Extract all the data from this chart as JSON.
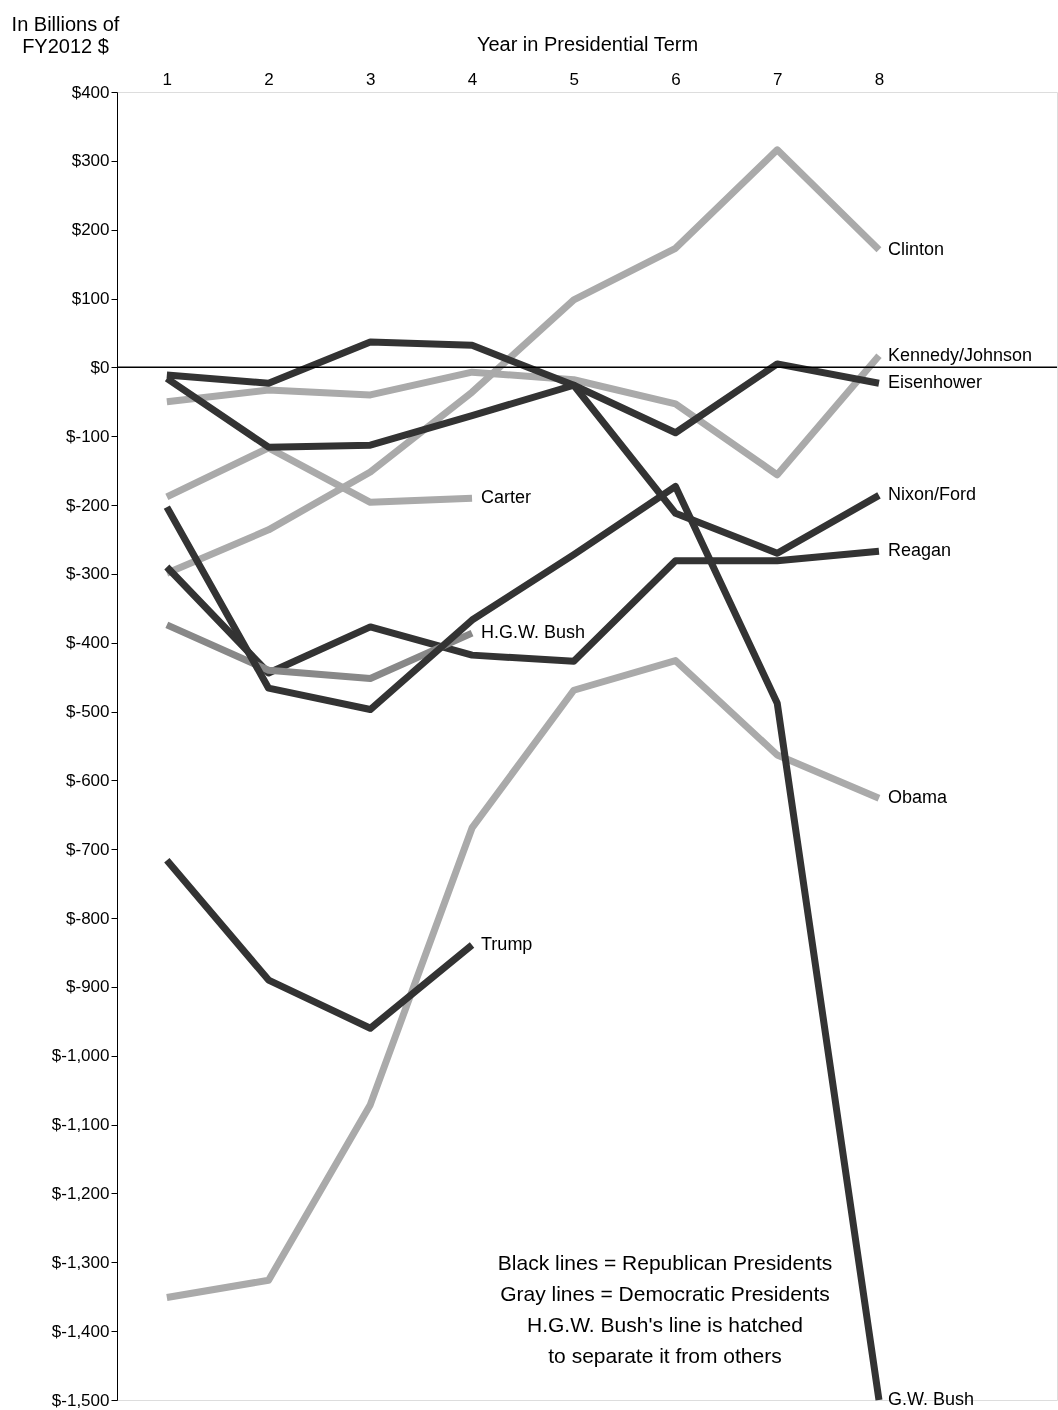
{
  "chart_data": {
    "type": "line",
    "xlabel": "Year in Presidential Term",
    "ylabel": "In Billions of\nFY2012 $",
    "x": [
      1,
      2,
      3,
      4,
      5,
      6,
      7,
      8
    ],
    "xlim": [
      0.51,
      9.75
    ],
    "xticks": [
      1,
      2,
      3,
      4,
      5,
      6,
      7,
      8
    ],
    "ylim": [
      -1500,
      400
    ],
    "yticks": [
      {
        "value": 400,
        "label": "$400"
      },
      {
        "value": 300,
        "label": "$300"
      },
      {
        "value": 200,
        "label": "$200"
      },
      {
        "value": 100,
        "label": "$100"
      },
      {
        "value": 0,
        "label": "$0"
      },
      {
        "value": -100,
        "label": "$-100"
      },
      {
        "value": -200,
        "label": "$-200"
      },
      {
        "value": -300,
        "label": "$-300"
      },
      {
        "value": -400,
        "label": "$-400"
      },
      {
        "value": -500,
        "label": "$-500"
      },
      {
        "value": -600,
        "label": "$-600"
      },
      {
        "value": -700,
        "label": "$-700"
      },
      {
        "value": -800,
        "label": "$-800"
      },
      {
        "value": -900,
        "label": "$-900"
      },
      {
        "value": -1000,
        "label": "$-1,000"
      },
      {
        "value": -1100,
        "label": "$-1,100"
      },
      {
        "value": -1200,
        "label": "$-1,200"
      },
      {
        "value": -1300,
        "label": "$-1,300"
      },
      {
        "value": -1400,
        "label": "$-1,400"
      },
      {
        "value": -1500,
        "label": "$-1,500"
      }
    ],
    "grid": false,
    "marker": "none",
    "line_style": "solid",
    "series": [
      {
        "name": "Kennedy/Johnson",
        "color": "#aaaaaa",
        "values": [
          -50,
          -33,
          -40,
          -7,
          -18,
          -53,
          -156,
          17
        ]
      },
      {
        "name": "Carter",
        "color": "#aaaaaa",
        "values": [
          -188,
          -117,
          -196,
          -190,
          null,
          null,
          null,
          null
        ]
      },
      {
        "name": "Clinton",
        "color": "#aaaaaa",
        "values": [
          -299,
          -236,
          -152,
          -36,
          98,
          173,
          316,
          171
        ]
      },
      {
        "name": "Obama",
        "color": "#aaaaaa",
        "values": [
          -1351,
          -1326,
          -1071,
          -669,
          -469,
          -426,
          -563,
          -626
        ]
      },
      {
        "name": "Eisenhower",
        "color": "#333333",
        "values": [
          -11,
          -23,
          37,
          32,
          -26,
          -95,
          5,
          -23
        ]
      },
      {
        "name": "Nixon/Ford",
        "color": "#333333",
        "values": [
          -16,
          -116,
          -113,
          -70,
          -26,
          -212,
          -270,
          -186
        ]
      },
      {
        "name": "Reagan",
        "color": "#333333",
        "values": [
          -290,
          -444,
          -377,
          -418,
          -427,
          -281,
          -281,
          -267
        ]
      },
      {
        "name": "H.G.W. Bush",
        "color": "#888888",
        "values": [
          -374,
          -440,
          -452,
          -386,
          null,
          null,
          null,
          null
        ]
      },
      {
        "name": "G.W. Bush",
        "color": "#333333",
        "values": [
          -203,
          -466,
          -497,
          -367,
          -272,
          -173,
          -488,
          -1500
        ]
      },
      {
        "name": "Trump",
        "color": "#333333",
        "values": [
          -716,
          -890,
          -960,
          -839,
          null,
          null,
          null,
          null
        ]
      }
    ],
    "ref_lines": [
      {
        "axis": "y",
        "value": 0,
        "color": "#000000"
      }
    ],
    "annotations": [
      "Black lines = Republican Presidents\nGray lines = Democratic Presidents\nH.G.W. Bush's line is hatched\nto separate it from others"
    ]
  }
}
